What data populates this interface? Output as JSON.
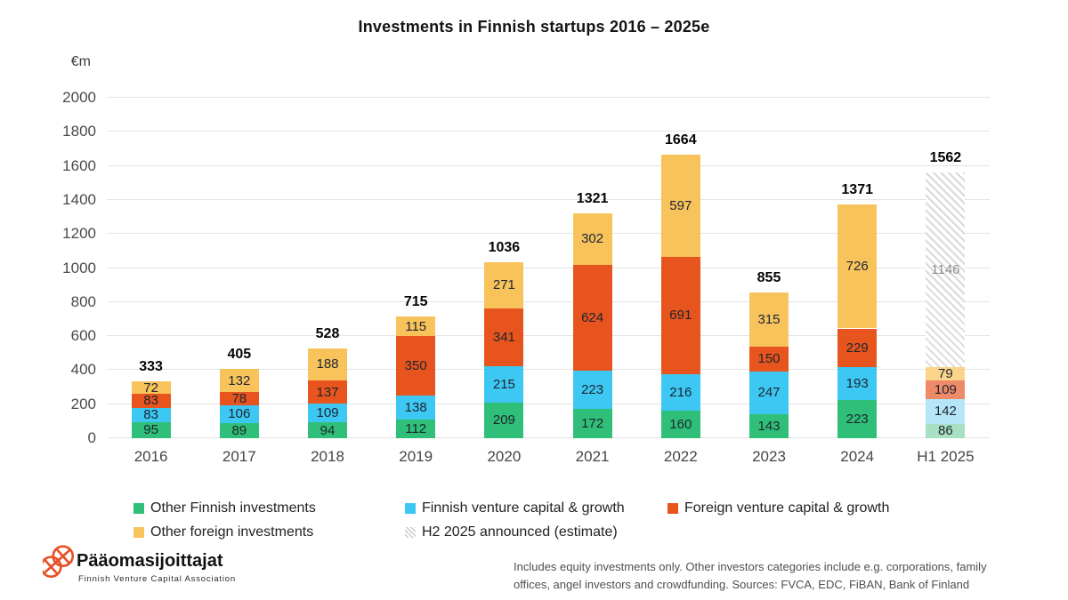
{
  "chart_data": {
    "type": "bar",
    "variant": "stacked",
    "title": "Investments in Finnish startups 2016 – 2025e",
    "unit": "€m",
    "ylim": [
      0,
      2000
    ],
    "yticks": [
      0,
      200,
      400,
      600,
      800,
      1000,
      1200,
      1400,
      1600,
      1800,
      2000
    ],
    "grid": "horizontal",
    "categories": [
      "2016",
      "2017",
      "2018",
      "2019",
      "2020",
      "2021",
      "2022",
      "2023",
      "2024",
      "H1 2025"
    ],
    "series": [
      {
        "name": "Other Finnish investments",
        "color": "#2fbf78",
        "muted": "#a7e0c2",
        "values": [
          95,
          89,
          94,
          112,
          209,
          172,
          160,
          143,
          223,
          86
        ]
      },
      {
        "name": "Finnish venture capital & growth",
        "color": "#3cc8f3",
        "muted": "#b5e6f8",
        "values": [
          83,
          106,
          109,
          138,
          215,
          223,
          216,
          247,
          193,
          142
        ]
      },
      {
        "name": "Foreign venture capital & growth",
        "color": "#e7541e",
        "muted": "#ee8a67",
        "values": [
          83,
          78,
          137,
          350,
          341,
          624,
          691,
          150,
          229,
          109
        ]
      },
      {
        "name": "Other foreign investments",
        "color": "#f9c35c",
        "muted": "#fbd48b",
        "values": [
          72,
          132,
          188,
          115,
          271,
          302,
          597,
          315,
          726,
          79
        ]
      },
      {
        "name": "H2 2025 announced (estimate)",
        "hatch": true,
        "values": [
          0,
          0,
          0,
          0,
          0,
          0,
          0,
          0,
          0,
          1146
        ]
      }
    ],
    "totals": [
      333,
      405,
      528,
      715,
      1036,
      1321,
      1664,
      855,
      1371,
      1562
    ],
    "muted_category_index": 9,
    "legend_position": "bottom"
  },
  "legend": {
    "items": [
      {
        "label": "Other Finnish investments",
        "swatch": "#2fbf78"
      },
      {
        "label": "Finnish venture capital & growth",
        "swatch": "#3cc8f3"
      },
      {
        "label": "Foreign venture capital & growth",
        "swatch": "#e7541e"
      },
      {
        "label": "Other foreign investments",
        "swatch": "#f9c35c"
      },
      {
        "label": "H2 2025 announced (estimate)",
        "swatch": "hatch"
      }
    ]
  },
  "footer": {
    "logo_title": "Pääomasijoittajat",
    "logo_subtitle": "Finnish Venture Capital Association",
    "logo_color": "#e84e23",
    "note_line1": "Includes equity investments only. Other investors categories include e.g. corporations, family",
    "note_line2": "offices, angel investors and crowdfunding. Sources: FVCA, EDC, FiBAN, Bank of Finland"
  }
}
